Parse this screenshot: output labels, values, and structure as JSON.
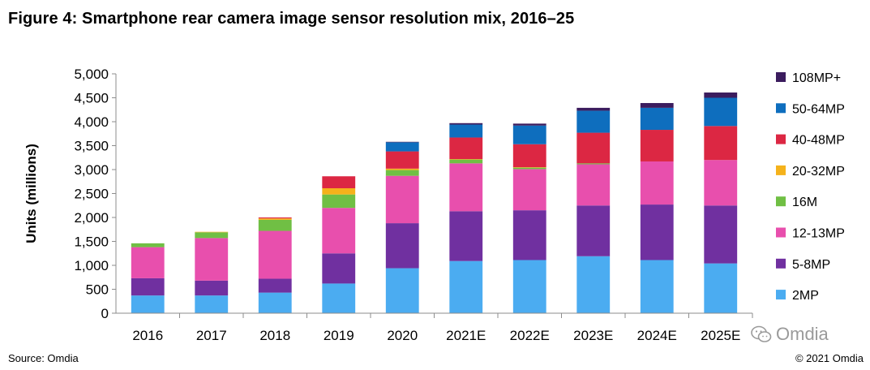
{
  "title": "Figure 4: Smartphone rear camera image sensor resolution mix, 2016–25",
  "footer": {
    "source": "Source: Omdia",
    "copyright": "© 2021 Omdia"
  },
  "watermark": {
    "text": "Omdia",
    "icon": "wechat-icon"
  },
  "chart_data": {
    "type": "bar",
    "stacked": true,
    "title": "Figure 4: Smartphone rear camera image sensor resolution mix, 2016–25",
    "xlabel": "",
    "ylabel": "Units (millions)",
    "ylim": [
      0,
      5000
    ],
    "yticks": [
      0,
      500,
      1000,
      1500,
      2000,
      2500,
      3000,
      3500,
      4000,
      4500,
      5000
    ],
    "ytick_labels": [
      "0",
      "500",
      "1,000",
      "1,500",
      "2,000",
      "2,500",
      "3,000",
      "3,500",
      "4,000",
      "4,500",
      "5,000"
    ],
    "categories": [
      "2016",
      "2017",
      "2018",
      "2019",
      "2020",
      "2021E",
      "2022E",
      "2023E",
      "2024E",
      "2025E"
    ],
    "legend_position": "right",
    "series": [
      {
        "name": "2MP",
        "color": "#4BACF1",
        "values": [
          370,
          370,
          430,
          620,
          940,
          1090,
          1110,
          1190,
          1110,
          1040
        ]
      },
      {
        "name": "5-8MP",
        "color": "#7030A0",
        "values": [
          360,
          310,
          290,
          630,
          940,
          1040,
          1040,
          1060,
          1160,
          1210
        ]
      },
      {
        "name": "12-13MP",
        "color": "#E84FAD",
        "values": [
          650,
          890,
          1000,
          950,
          990,
          1000,
          860,
          860,
          900,
          950
        ]
      },
      {
        "name": "16M",
        "color": "#70BF44",
        "values": [
          80,
          120,
          230,
          280,
          120,
          80,
          30,
          20,
          0,
          0
        ]
      },
      {
        "name": "20-32MP",
        "color": "#F5B21B",
        "values": [
          0,
          10,
          30,
          130,
          30,
          10,
          10,
          0,
          0,
          0
        ]
      },
      {
        "name": "40-48MP",
        "color": "#DC2743",
        "values": [
          0,
          0,
          20,
          250,
          360,
          450,
          480,
          640,
          660,
          710
        ]
      },
      {
        "name": "50-64MP",
        "color": "#0E6EBE",
        "values": [
          0,
          0,
          0,
          0,
          190,
          270,
          390,
          460,
          460,
          590
        ]
      },
      {
        "name": "108MP+",
        "color": "#3B1C5E",
        "values": [
          0,
          0,
          0,
          0,
          10,
          30,
          40,
          60,
          100,
          110
        ]
      }
    ]
  }
}
